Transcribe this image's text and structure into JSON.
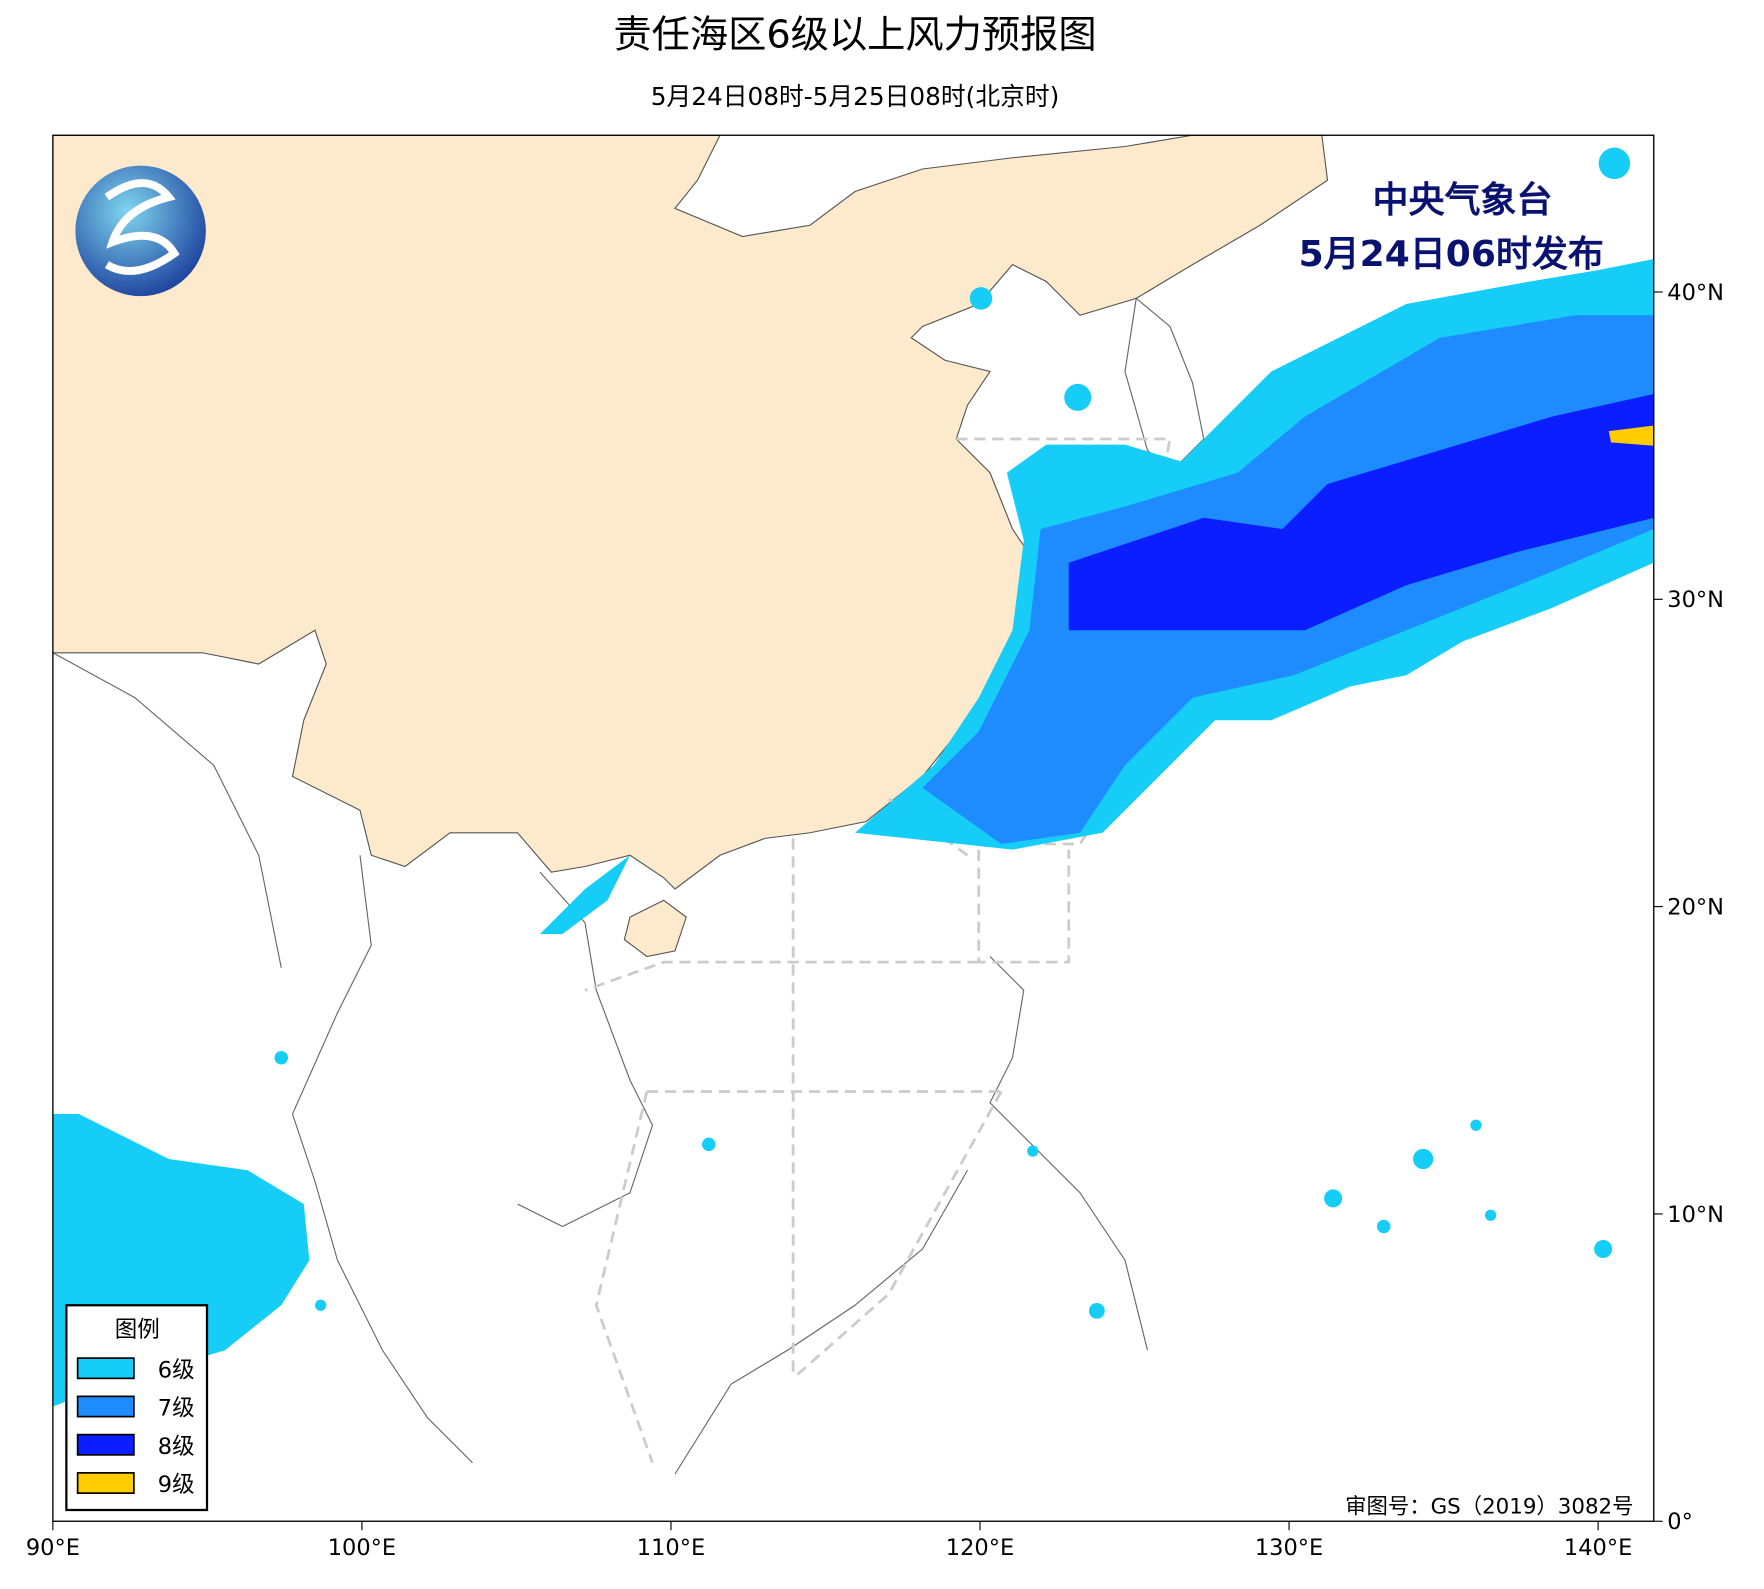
{
  "header": {
    "title": "责任海区6级以上风力预报图",
    "subtitle": "5月24日08时-5月25日08时(北京时)"
  },
  "issuer": {
    "name": "中央气象台",
    "time": "5月24日06时发布"
  },
  "map": {
    "xlim": [
      90,
      141.8
    ],
    "ylim": [
      0,
      45.1
    ],
    "xticks": [
      {
        "value": 90,
        "label": "90°E"
      },
      {
        "value": 100,
        "label": "100°E"
      },
      {
        "value": 110,
        "label": "110°E"
      },
      {
        "value": 120,
        "label": "120°E"
      },
      {
        "value": 130,
        "label": "130°E"
      },
      {
        "value": 140,
        "label": "140°E"
      }
    ],
    "yticks": [
      {
        "value": 0,
        "label": "0°"
      },
      {
        "value": 10,
        "label": "10°N"
      },
      {
        "value": 20,
        "label": "20°N"
      },
      {
        "value": 30,
        "label": "30°N"
      },
      {
        "value": 40,
        "label": "40°N"
      }
    ]
  },
  "legend": {
    "title": "图例",
    "items": [
      {
        "label": "6级",
        "color": "#16cdf7"
      },
      {
        "label": "7级",
        "color": "#1e8cff"
      },
      {
        "label": "8级",
        "color": "#0a1eff"
      },
      {
        "label": "9级",
        "color": "#ffcc00"
      }
    ]
  },
  "approval": "审图号：GS（2019）3082号"
}
